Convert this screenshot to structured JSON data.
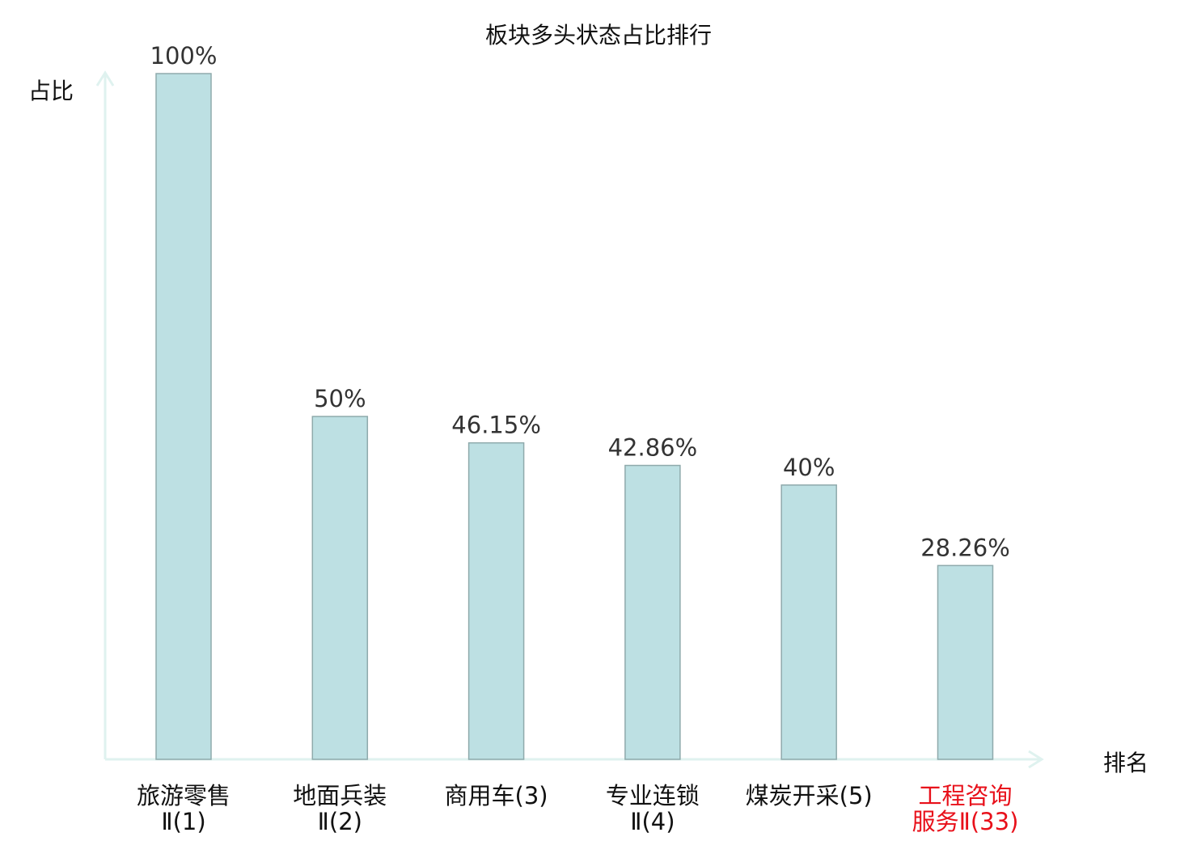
{
  "chart_data": {
    "type": "bar",
    "title": "板块多头状态占比排行",
    "ylabel": "占比",
    "xlabel": "排名",
    "ylim": [
      0,
      100
    ],
    "grid": false,
    "categories": [
      {
        "lines": [
          "旅游零售",
          "Ⅱ(1)"
        ],
        "highlight": false
      },
      {
        "lines": [
          "地面兵装",
          "Ⅱ(2)"
        ],
        "highlight": false
      },
      {
        "lines": [
          "商用车(3)"
        ],
        "highlight": false
      },
      {
        "lines": [
          "专业连锁",
          "Ⅱ(4)"
        ],
        "highlight": false
      },
      {
        "lines": [
          "煤炭开采(5)"
        ],
        "highlight": false
      },
      {
        "lines": [
          "工程咨询",
          "服务Ⅱ(33)"
        ],
        "highlight": true
      }
    ],
    "values": [
      100,
      50,
      46.15,
      42.86,
      40,
      28.26
    ],
    "data_labels": [
      "100%",
      "50%",
      "46.15%",
      "42.86%",
      "40%",
      "28.26%"
    ],
    "colors": {
      "bar_fill": "#bde0e3",
      "bar_stroke": "#8faaac",
      "axis": "#dff2ef",
      "highlight": "#e8101a",
      "text": "#222222"
    }
  }
}
